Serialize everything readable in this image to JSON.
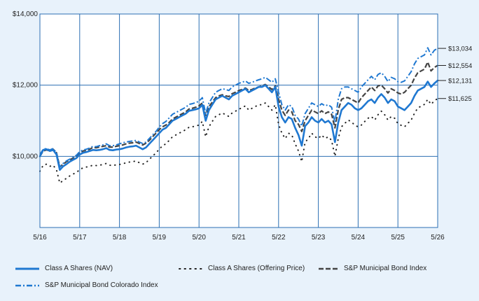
{
  "chart_data": {
    "type": "line",
    "title": "",
    "xlabel": "",
    "ylabel": "",
    "x_ticks": [
      "5/16",
      "5/17",
      "5/18",
      "5/19",
      "5/20",
      "5/21",
      "5/22",
      "5/23",
      "5/24",
      "5/25",
      "5/26"
    ],
    "y_ticks": [
      "$10,000",
      "$12,000",
      "$14,000"
    ],
    "ylim": [
      8000,
      14000
    ],
    "xlim": [
      0,
      120
    ],
    "grid": true,
    "legend_position": "bottom",
    "x": [
      0,
      1,
      2,
      3,
      4,
      5,
      6,
      7,
      8,
      9,
      10,
      11,
      12,
      13,
      14,
      15,
      16,
      17,
      18,
      19,
      20,
      21,
      22,
      23,
      24,
      25,
      26,
      27,
      28,
      29,
      30,
      31,
      32,
      33,
      34,
      35,
      36,
      37,
      38,
      39,
      40,
      41,
      42,
      43,
      44,
      45,
      46,
      47,
      48,
      49,
      50,
      51,
      52,
      53,
      54,
      55,
      56,
      57,
      58,
      59,
      60,
      61,
      62,
      63,
      64,
      65,
      66,
      67,
      68,
      69,
      70,
      71,
      72,
      73,
      74,
      75,
      76,
      77,
      78,
      79,
      80,
      81,
      82,
      83,
      84,
      85,
      86,
      87,
      88,
      89,
      90,
      91,
      92,
      93,
      94,
      95,
      96,
      97,
      98,
      99,
      100,
      101,
      102,
      103,
      104,
      105,
      106,
      107,
      108,
      109,
      110,
      111,
      112,
      113,
      114,
      115,
      116,
      117,
      118,
      119,
      120
    ],
    "series": [
      {
        "name": "Class A Shares (NAV)",
        "color": "#1f78d1",
        "style": "solid",
        "end_label": "$12,131",
        "values": [
          10000,
          10180,
          10200,
          10150,
          10180,
          10050,
          9620,
          9720,
          9780,
          9850,
          9900,
          9950,
          10050,
          10100,
          10120,
          10150,
          10180,
          10170,
          10180,
          10200,
          10230,
          10180,
          10170,
          10190,
          10200,
          10220,
          10250,
          10270,
          10280,
          10300,
          10250,
          10200,
          10250,
          10350,
          10450,
          10550,
          10650,
          10750,
          10800,
          10900,
          11000,
          11050,
          11100,
          11150,
          11200,
          11280,
          11300,
          11320,
          11350,
          11450,
          11000,
          11300,
          11450,
          11600,
          11650,
          11700,
          11650,
          11600,
          11700,
          11750,
          11800,
          11850,
          11900,
          11800,
          11850,
          11900,
          11950,
          11950,
          12000,
          11900,
          11800,
          11950,
          11400,
          11100,
          10950,
          11100,
          11050,
          10800,
          10600,
          10300,
          10850,
          10950,
          11100,
          11000,
          10950,
          11050,
          10950,
          11000,
          10900,
          10400,
          10950,
          11300,
          11400,
          11500,
          11450,
          11350,
          11300,
          11350,
          11450,
          11550,
          11600,
          11500,
          11650,
          11750,
          11650,
          11500,
          11600,
          11550,
          11400,
          11350,
          11300,
          11400,
          11500,
          11700,
          11850,
          11900,
          11950,
          12100,
          11950,
          12050,
          12131
        ]
      },
      {
        "name": "Class A Shares (Offering Price)",
        "color": "#222222",
        "style": "dotted",
        "end_label": "$11,625",
        "values": [
          9580,
          9750,
          9780,
          9720,
          9750,
          9620,
          9250,
          9320,
          9380,
          9450,
          9500,
          9550,
          9620,
          9680,
          9700,
          9720,
          9750,
          9740,
          9750,
          9770,
          9800,
          9750,
          9740,
          9760,
          9770,
          9790,
          9820,
          9840,
          9850,
          9870,
          9820,
          9780,
          9820,
          9920,
          10000,
          10100,
          10200,
          10300,
          10350,
          10450,
          10550,
          10600,
          10650,
          10700,
          10750,
          10820,
          10830,
          10850,
          10880,
          10980,
          10550,
          10830,
          10980,
          11120,
          11170,
          11220,
          11170,
          11120,
          11220,
          11270,
          11320,
          11370,
          11420,
          11300,
          11350,
          11400,
          11450,
          11450,
          11500,
          11400,
          11300,
          11450,
          10900,
          10650,
          10500,
          10650,
          10600,
          10350,
          10150,
          9850,
          10400,
          10500,
          10650,
          10550,
          10500,
          10600,
          10500,
          10550,
          10450,
          10000,
          10500,
          10830,
          10930,
          11020,
          10970,
          10870,
          10830,
          10880,
          10980,
          11070,
          11120,
          11020,
          11170,
          11270,
          11170,
          11020,
          11120,
          11070,
          10920,
          10870,
          10830,
          10930,
          11020,
          11210,
          11360,
          11410,
          11460,
          11600,
          11460,
          11560,
          11625
        ]
      },
      {
        "name": "S&P Municipal Bond Index",
        "color": "#444444",
        "style": "dashed",
        "end_label": "$12,554",
        "values": [
          10000,
          10150,
          10180,
          10150,
          10200,
          10100,
          9700,
          9780,
          9850,
          9900,
          9950,
          10000,
          10100,
          10150,
          10170,
          10200,
          10250,
          10240,
          10260,
          10280,
          10300,
          10260,
          10260,
          10280,
          10300,
          10320,
          10350,
          10370,
          10380,
          10400,
          10360,
          10320,
          10370,
          10450,
          10550,
          10650,
          10750,
          10830,
          10880,
          10950,
          11050,
          11100,
          11150,
          11200,
          11250,
          11330,
          11350,
          11380,
          11420,
          11500,
          11150,
          11400,
          11520,
          11650,
          11700,
          11730,
          11700,
          11680,
          11760,
          11800,
          11850,
          11880,
          11920,
          11850,
          11880,
          11920,
          11950,
          11980,
          12020,
          11950,
          11880,
          11980,
          11600,
          11300,
          11150,
          11300,
          11250,
          11000,
          10900,
          10700,
          11000,
          11150,
          11300,
          11250,
          11200,
          11280,
          11200,
          11250,
          11180,
          10800,
          11300,
          11600,
          11650,
          11650,
          11600,
          11550,
          11500,
          11650,
          11750,
          11850,
          11950,
          11850,
          11980,
          12000,
          11900,
          11780,
          11900,
          11850,
          11780,
          11750,
          11800,
          11900,
          12000,
          12200,
          12350,
          12400,
          12450,
          12650,
          12400,
          12500,
          12554
        ]
      },
      {
        "name": "S&P Municipal Bond Colorado Index",
        "color": "#1f78d1",
        "style": "dashdot",
        "end_label": "$13,034",
        "values": [
          10050,
          10200,
          10220,
          10180,
          10220,
          10100,
          9700,
          9800,
          9870,
          9920,
          9970,
          10030,
          10130,
          10180,
          10200,
          10230,
          10280,
          10270,
          10300,
          10320,
          10350,
          10300,
          10300,
          10320,
          10350,
          10380,
          10400,
          10420,
          10430,
          10450,
          10400,
          10360,
          10400,
          10500,
          10600,
          10700,
          10820,
          10920,
          10980,
          11080,
          11180,
          11230,
          11280,
          11330,
          11380,
          11460,
          11480,
          11510,
          11550,
          11650,
          11200,
          11500,
          11650,
          11800,
          11850,
          11900,
          11880,
          11850,
          11950,
          12000,
          12050,
          12080,
          12120,
          12050,
          12080,
          12120,
          12150,
          12180,
          12220,
          12150,
          12080,
          12180,
          11800,
          11450,
          11300,
          11450,
          11400,
          11150,
          11050,
          10850,
          11200,
          11350,
          11500,
          11450,
          11400,
          11480,
          11420,
          11450,
          11380,
          10950,
          11600,
          11900,
          11950,
          11950,
          11900,
          11850,
          11800,
          11950,
          12050,
          12150,
          12250,
          12150,
          12300,
          12350,
          12250,
          12100,
          12220,
          12180,
          12100,
          12080,
          12120,
          12250,
          12380,
          12600,
          12750,
          12800,
          12850,
          13050,
          12850,
          12980,
          13034
        ]
      }
    ]
  }
}
